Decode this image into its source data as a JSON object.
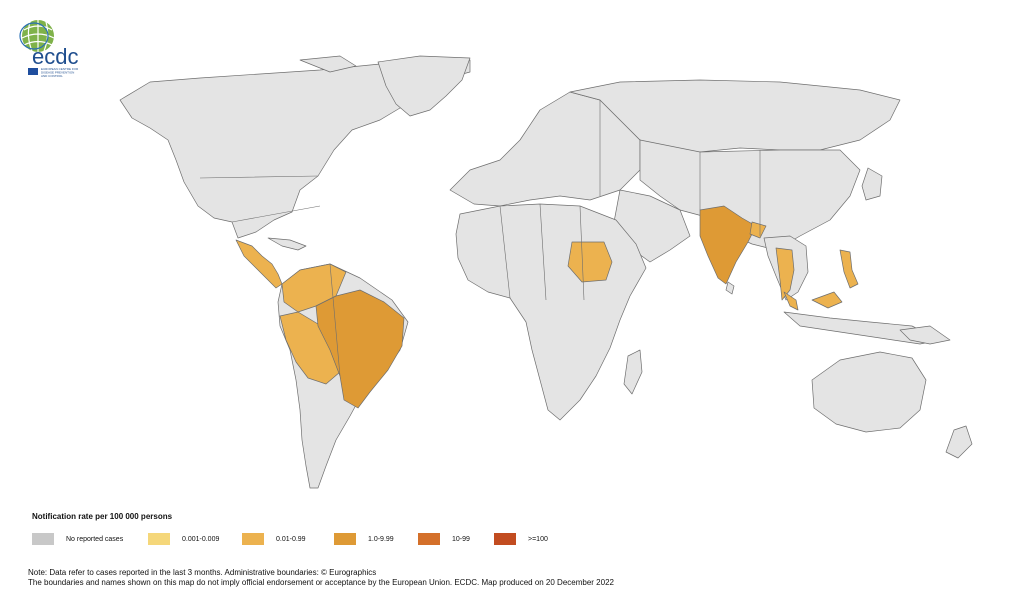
{
  "logo": {
    "wordmark": "ecdc",
    "subtitle_lines": [
      "EUROPEAN CENTRE FOR",
      "DISEASE PREVENTION",
      "AND CONTROL"
    ]
  },
  "legend": {
    "title": "Notification rate per 100 000 persons",
    "items": [
      {
        "label": "No reported cases",
        "color": "#c8c8c8"
      },
      {
        "label": "0.001-0.009",
        "color": "#f5d77a"
      },
      {
        "label": "0.01-0.99",
        "color": "#ecb24f"
      },
      {
        "label": "1.0-9.99",
        "color": "#de9a35"
      },
      {
        "label": "10-99",
        "color": "#d4702a"
      },
      {
        "label": ">=100",
        "color": "#c24c20"
      }
    ]
  },
  "notes": {
    "line1": "Note: Data refer to cases reported in the last 3 months. Administrative boundaries: © Eurographics",
    "line2": "The boundaries and names shown on this map do not imply official endorsement or acceptance by the European Union. ECDC. Map produced on 20 December 2022"
  },
  "map_regions": [
    {
      "region": "Brazil",
      "category": "1.0-9.99"
    },
    {
      "region": "India",
      "category": "1.0-9.99"
    },
    {
      "region": "Sudan",
      "category": "0.01-0.99"
    },
    {
      "region": "Peru",
      "category": "0.01-0.99"
    },
    {
      "region": "Bolivia",
      "category": "0.01-0.99"
    },
    {
      "region": "Colombia",
      "category": "0.01-0.99"
    },
    {
      "region": "Venezuela",
      "category": "0.01-0.99"
    },
    {
      "region": "Central America",
      "category": "0.01-0.99"
    },
    {
      "region": "Thailand",
      "category": "0.01-0.99"
    },
    {
      "region": "Malaysia",
      "category": "0.01-0.99"
    },
    {
      "region": "Philippines",
      "category": "0.01-0.99"
    },
    {
      "region": "Bangladesh",
      "category": "0.01-0.99"
    }
  ]
}
